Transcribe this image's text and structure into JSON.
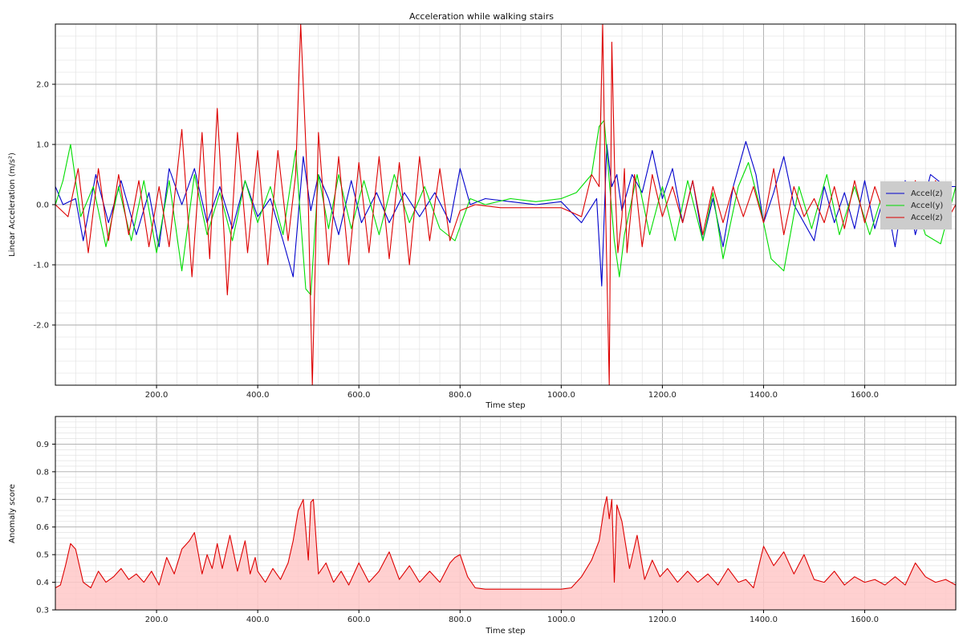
{
  "chart_data": [
    {
      "type": "line",
      "title": "Acceleration while walking stairs",
      "xlabel": "Time step",
      "ylabel": "Linear Acceleration (m/s²)",
      "xlim": [
        0,
        1780
      ],
      "ylim": [
        -3,
        3
      ],
      "x_ticks": [
        200,
        400,
        600,
        800,
        1000,
        1200,
        1400,
        1600
      ],
      "x_tick_labels": [
        "200.0",
        "400.0",
        "600.0",
        "800.0",
        "1000.0",
        "1200.0",
        "1400.0",
        "1600.0"
      ],
      "y_ticks": [
        2,
        1,
        0,
        -1,
        -2
      ],
      "y_tick_labels": [
        "2.0",
        "1.0",
        "0.0",
        "-1.0",
        "-2.0"
      ],
      "grid": true,
      "legend_position": "right",
      "series": [
        {
          "name": "Accel(z)",
          "color": "#0000cc",
          "x": [
            0,
            15,
            40,
            55,
            80,
            105,
            130,
            160,
            185,
            205,
            225,
            250,
            275,
            300,
            325,
            350,
            375,
            400,
            425,
            450,
            470,
            490,
            505,
            520,
            540,
            560,
            585,
            605,
            635,
            660,
            690,
            720,
            750,
            780,
            800,
            820,
            850,
            900,
            950,
            1000,
            1040,
            1070,
            1080,
            1090,
            1100,
            1110,
            1120,
            1140,
            1160,
            1180,
            1200,
            1220,
            1240,
            1260,
            1280,
            1300,
            1320,
            1340,
            1365,
            1385,
            1400,
            1420,
            1440,
            1460,
            1480,
            1500,
            1520,
            1540,
            1560,
            1580,
            1600,
            1620,
            1640,
            1660,
            1680,
            1700,
            1730,
            1760,
            1780
          ],
          "y": [
            0.3,
            0.0,
            0.1,
            -0.6,
            0.5,
            -0.3,
            0.4,
            -0.5,
            0.2,
            -0.7,
            0.6,
            0.0,
            0.6,
            -0.3,
            0.3,
            -0.4,
            0.4,
            -0.2,
            0.1,
            -0.6,
            -1.2,
            0.8,
            -0.1,
            0.5,
            0.1,
            -0.5,
            0.4,
            -0.3,
            0.2,
            -0.3,
            0.2,
            -0.2,
            0.2,
            -0.3,
            0.6,
            0.0,
            0.1,
            0.05,
            0.0,
            0.05,
            -0.3,
            0.1,
            -1.35,
            1.0,
            0.3,
            0.5,
            -0.1,
            0.5,
            0.2,
            0.9,
            0.1,
            0.6,
            -0.3,
            0.4,
            -0.6,
            0.1,
            -0.7,
            0.3,
            1.05,
            0.5,
            -0.3,
            0.2,
            0.8,
            0.0,
            -0.3,
            -0.6,
            0.3,
            -0.3,
            0.2,
            -0.4,
            0.4,
            -0.4,
            0.2,
            -0.7,
            0.4,
            -0.5,
            0.5,
            0.3,
            0.3
          ]
        },
        {
          "name": "Accel(y)",
          "color": "#00dd00",
          "x": [
            0,
            15,
            30,
            50,
            75,
            100,
            125,
            150,
            175,
            200,
            225,
            250,
            275,
            300,
            325,
            350,
            375,
            400,
            425,
            450,
            475,
            495,
            505,
            520,
            540,
            560,
            585,
            610,
            640,
            670,
            700,
            730,
            760,
            790,
            820,
            850,
            900,
            950,
            1000,
            1030,
            1060,
            1075,
            1085,
            1095,
            1105,
            1115,
            1125,
            1150,
            1175,
            1200,
            1225,
            1250,
            1280,
            1300,
            1320,
            1350,
            1370,
            1395,
            1415,
            1440,
            1470,
            1495,
            1525,
            1550,
            1580,
            1610,
            1640,
            1660,
            1690,
            1720,
            1750,
            1780
          ],
          "y": [
            0.0,
            0.4,
            1.0,
            -0.2,
            0.3,
            -0.7,
            0.3,
            -0.6,
            0.4,
            -0.8,
            0.4,
            -1.1,
            0.5,
            -0.5,
            0.2,
            -0.6,
            0.4,
            -0.3,
            0.3,
            -0.5,
            0.9,
            -1.4,
            -1.5,
            0.5,
            -0.4,
            0.5,
            -0.4,
            0.4,
            -0.5,
            0.5,
            -0.3,
            0.3,
            -0.4,
            -0.6,
            0.1,
            0.0,
            0.1,
            0.05,
            0.1,
            0.2,
            0.5,
            1.3,
            1.4,
            0.4,
            -0.6,
            -1.2,
            -0.5,
            0.5,
            -0.5,
            0.3,
            -0.6,
            0.4,
            -0.6,
            0.2,
            -0.9,
            0.3,
            0.7,
            -0.1,
            -0.9,
            -1.1,
            0.3,
            -0.4,
            0.5,
            -0.5,
            0.3,
            -0.5,
            0.3,
            -0.3,
            0.3,
            -0.5,
            -0.65,
            0.3
          ]
        },
        {
          "name": "Accel(z)",
          "color": "#dd0000",
          "x": [
            0,
            25,
            45,
            65,
            85,
            105,
            125,
            145,
            165,
            185,
            205,
            225,
            250,
            270,
            290,
            305,
            320,
            340,
            360,
            380,
            400,
            420,
            440,
            460,
            475,
            485,
            500,
            508,
            520,
            540,
            560,
            580,
            600,
            620,
            640,
            660,
            680,
            700,
            720,
            740,
            760,
            780,
            800,
            830,
            880,
            940,
            1000,
            1040,
            1060,
            1075,
            1082,
            1088,
            1095,
            1100,
            1106,
            1112,
            1120,
            1125,
            1130,
            1145,
            1160,
            1180,
            1200,
            1220,
            1240,
            1260,
            1280,
            1300,
            1320,
            1340,
            1360,
            1380,
            1400,
            1420,
            1440,
            1460,
            1480,
            1500,
            1520,
            1540,
            1560,
            1580,
            1600,
            1620,
            1640,
            1660,
            1680,
            1700,
            1720,
            1740,
            1760,
            1780
          ],
          "y": [
            0.0,
            -0.2,
            0.6,
            -0.8,
            0.6,
            -0.6,
            0.5,
            -0.5,
            0.4,
            -0.7,
            0.3,
            -0.7,
            1.25,
            -1.2,
            1.2,
            -0.9,
            1.6,
            -1.5,
            1.2,
            -0.8,
            0.9,
            -1.0,
            0.9,
            -0.6,
            0.5,
            3.0,
            0.0,
            -3.0,
            1.2,
            -1.0,
            0.8,
            -1.0,
            0.7,
            -0.8,
            0.8,
            -0.9,
            0.7,
            -1.0,
            0.8,
            -0.6,
            0.6,
            -0.6,
            -0.1,
            0.0,
            -0.05,
            -0.05,
            -0.05,
            -0.2,
            0.5,
            0.3,
            3.0,
            -0.2,
            -3.0,
            2.7,
            0.4,
            -0.8,
            -0.2,
            0.6,
            -0.8,
            0.5,
            -0.7,
            0.5,
            -0.2,
            0.3,
            -0.3,
            0.4,
            -0.5,
            0.3,
            -0.3,
            0.3,
            -0.2,
            0.3,
            -0.3,
            0.6,
            -0.5,
            0.3,
            -0.2,
            0.1,
            -0.3,
            0.3,
            -0.4,
            0.4,
            -0.3,
            0.3,
            -0.2,
            0.2,
            -0.3,
            0.4,
            -0.4,
            0.4,
            -0.3,
            0.0
          ]
        }
      ]
    },
    {
      "type": "area",
      "title": "",
      "xlabel": "Time step",
      "ylabel": "Anomaly score",
      "xlim": [
        0,
        1780
      ],
      "ylim": [
        0.3,
        1.0
      ],
      "x_ticks": [
        200,
        400,
        600,
        800,
        1000,
        1200,
        1400,
        1600
      ],
      "x_tick_labels": [
        "200.0",
        "400.0",
        "600.0",
        "800.0",
        "1000.0",
        "1200.0",
        "1400.0",
        "1600.0"
      ],
      "y_ticks": [
        0.3,
        0.4,
        0.5,
        0.6,
        0.7,
        0.8,
        0.9
      ],
      "y_tick_labels": [
        "0.3",
        "0.4",
        "0.5",
        "0.6",
        "0.7",
        "0.8",
        "0.9"
      ],
      "grid": true,
      "series": [
        {
          "color": "#dd0000",
          "fill": "#ffc8c8",
          "x": [
            0,
            10,
            20,
            30,
            40,
            55,
            70,
            85,
            100,
            115,
            130,
            145,
            160,
            175,
            190,
            205,
            220,
            235,
            250,
            265,
            275,
            290,
            300,
            310,
            320,
            330,
            345,
            360,
            375,
            385,
            395,
            400,
            415,
            430,
            445,
            460,
            470,
            480,
            490,
            500,
            505,
            510,
            520,
            535,
            550,
            565,
            580,
            600,
            620,
            640,
            660,
            680,
            700,
            720,
            740,
            760,
            780,
            790,
            800,
            815,
            830,
            850,
            900,
            950,
            1000,
            1020,
            1040,
            1060,
            1075,
            1085,
            1090,
            1095,
            1100,
            1105,
            1110,
            1120,
            1135,
            1150,
            1165,
            1180,
            1195,
            1210,
            1230,
            1250,
            1270,
            1290,
            1310,
            1330,
            1350,
            1365,
            1380,
            1400,
            1420,
            1440,
            1460,
            1480,
            1500,
            1520,
            1540,
            1560,
            1580,
            1600,
            1620,
            1640,
            1660,
            1680,
            1700,
            1720,
            1740,
            1760,
            1780
          ],
          "y": [
            0.38,
            0.39,
            0.46,
            0.54,
            0.52,
            0.4,
            0.38,
            0.44,
            0.4,
            0.42,
            0.45,
            0.41,
            0.43,
            0.4,
            0.44,
            0.39,
            0.49,
            0.43,
            0.52,
            0.55,
            0.58,
            0.43,
            0.5,
            0.45,
            0.54,
            0.45,
            0.57,
            0.44,
            0.55,
            0.43,
            0.49,
            0.44,
            0.4,
            0.45,
            0.41,
            0.47,
            0.55,
            0.66,
            0.7,
            0.48,
            0.69,
            0.7,
            0.43,
            0.47,
            0.4,
            0.44,
            0.39,
            0.47,
            0.4,
            0.44,
            0.51,
            0.41,
            0.46,
            0.4,
            0.44,
            0.4,
            0.47,
            0.49,
            0.5,
            0.42,
            0.38,
            0.375,
            0.375,
            0.375,
            0.375,
            0.38,
            0.42,
            0.48,
            0.55,
            0.67,
            0.71,
            0.63,
            0.7,
            0.4,
            0.68,
            0.62,
            0.45,
            0.57,
            0.41,
            0.48,
            0.42,
            0.45,
            0.4,
            0.44,
            0.4,
            0.43,
            0.39,
            0.45,
            0.4,
            0.41,
            0.38,
            0.53,
            0.46,
            0.51,
            0.43,
            0.5,
            0.41,
            0.4,
            0.44,
            0.39,
            0.42,
            0.4,
            0.41,
            0.39,
            0.42,
            0.39,
            0.47,
            0.42,
            0.4,
            0.41,
            0.39
          ]
        }
      ]
    }
  ]
}
